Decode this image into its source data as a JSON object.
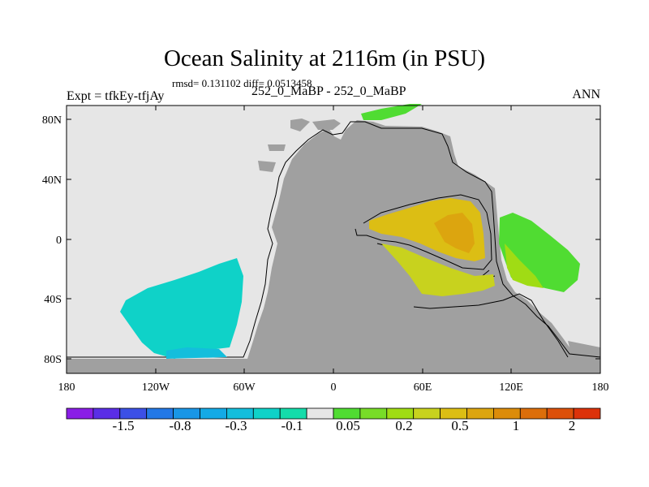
{
  "title": "Ocean Salinity at 2116m (in PSU)",
  "stats": "rmsd= 0.131102 diff= 0.0513458",
  "experiment": "Expt = tfkEy-tfjAy",
  "case": "252_0_MaBP - 252_0_MaBP",
  "season": "ANN",
  "colors": {
    "land": "#a0a0a0",
    "missing": "#e6e6e6",
    "coast": "#000000"
  },
  "map": {
    "lon_ticks": [
      "180",
      "120W",
      "60W",
      "0",
      "60E",
      "120E",
      "180"
    ],
    "lat_ticks": [
      "80N",
      "40N",
      "0",
      "40S",
      "80S"
    ]
  },
  "colorbar": {
    "colors": [
      "#8a1ee6",
      "#5a2ee6",
      "#3c50e6",
      "#2378e6",
      "#1996e6",
      "#14aae6",
      "#14bedc",
      "#0fd2c8",
      "#14dcaa",
      "#e6e6e6",
      "#50dc32",
      "#78dc28",
      "#a0dc14",
      "#c8d21e",
      "#dcbe14",
      "#dca50f",
      "#dc8c0a",
      "#dc6e0a",
      "#dc500a",
      "#dc320a"
    ],
    "labels": [
      "-1.5",
      "-0.8",
      "-0.3",
      "-0.1",
      "0.05",
      "0.2",
      "0.5",
      "1",
      "2"
    ]
  }
}
